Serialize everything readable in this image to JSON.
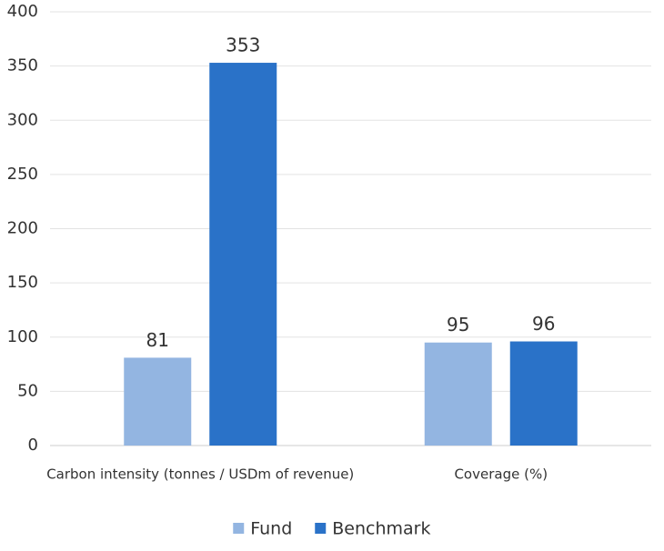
{
  "chart_data": {
    "type": "bar",
    "categories": [
      "Carbon intensity (tonnes / USDm of revenue)",
      "Coverage (%)"
    ],
    "series": [
      {
        "name": "Fund",
        "color": "#93b5e1",
        "values": [
          81,
          95
        ]
      },
      {
        "name": "Benchmark",
        "color": "#2a72c8",
        "values": [
          353,
          96
        ]
      }
    ],
    "ylim": [
      0,
      400
    ],
    "yticks": [
      0,
      50,
      100,
      150,
      200,
      250,
      300,
      350,
      400
    ],
    "grid": true,
    "legend": "bottom"
  }
}
